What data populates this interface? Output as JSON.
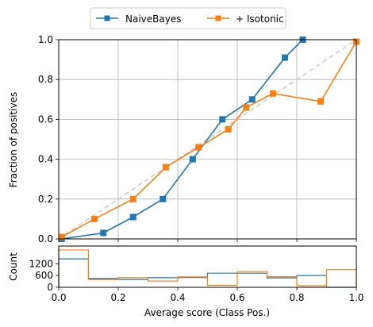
{
  "chart_data": [
    {
      "type": "line",
      "xlim": [
        0,
        1
      ],
      "ylim": [
        0,
        1
      ],
      "x_ticks": [
        "0.0",
        "0.2",
        "0.4",
        "0.6",
        "0.8",
        "1.0"
      ],
      "y_ticks": [
        "0.0",
        "0.2",
        "0.4",
        "0.6",
        "0.8",
        "1.0"
      ],
      "ylabel": "Fraction of positives",
      "grid": true,
      "legend_placement": "top-center, above plot, two columns",
      "reference_line": {
        "points": [
          [
            0,
            0
          ],
          [
            1,
            1
          ]
        ],
        "style": "dashed",
        "color": "#cccccc"
      },
      "series": [
        {
          "name": "NaiveBayes",
          "color": "#1f77b4",
          "marker": "square",
          "x": [
            0.01,
            0.15,
            0.25,
            0.35,
            0.45,
            0.55,
            0.65,
            0.76,
            0.82
          ],
          "y": [
            0.0,
            0.03,
            0.11,
            0.2,
            0.4,
            0.6,
            0.7,
            0.91,
            1.0
          ]
        },
        {
          "name": "+ Isotonic",
          "color": "#ff7f0e",
          "marker": "square",
          "x": [
            0.01,
            0.12,
            0.25,
            0.36,
            0.47,
            0.57,
            0.63,
            0.72,
            0.88,
            1.0
          ],
          "y": [
            0.01,
            0.1,
            0.2,
            0.36,
            0.46,
            0.55,
            0.66,
            0.73,
            0.69,
            0.99
          ]
        }
      ]
    },
    {
      "type": "histogram",
      "xlim": [
        0,
        1
      ],
      "ylim": [
        0,
        2100
      ],
      "x_ticks": [
        "0.0",
        "0.2",
        "0.4",
        "0.6",
        "0.8",
        "1.0"
      ],
      "y_ticks": [
        "0",
        "600",
        "1200"
      ],
      "y_tick_values": [
        0,
        600,
        1200
      ],
      "xlabel": "Average score (Class Pos.)",
      "ylabel": "Count",
      "histtype": "step",
      "bin_edges": [
        0,
        0.1,
        0.2,
        0.3,
        0.4,
        0.5,
        0.6,
        0.7,
        0.8,
        0.9,
        1.0
      ],
      "series": [
        {
          "name": "NaiveBayes",
          "color": "#1f77b4",
          "counts": [
            1450,
            450,
            400,
            490,
            500,
            720,
            720,
            480,
            600,
            0
          ]
        },
        {
          "name": "+ Isotonic",
          "color": "#ff7f0e",
          "counts": [
            1900,
            400,
            490,
            320,
            530,
            100,
            800,
            540,
            80,
            900
          ]
        }
      ]
    }
  ]
}
